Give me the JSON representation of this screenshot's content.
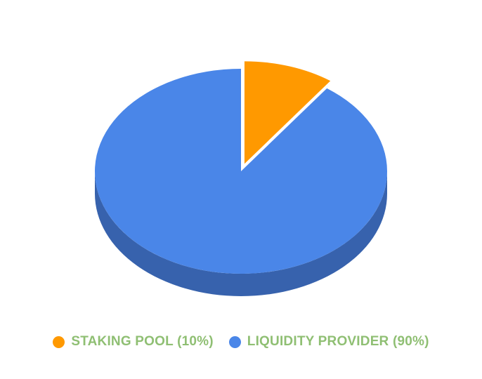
{
  "chart_data": {
    "type": "pie",
    "style": "3d",
    "slices": [
      {
        "label": "STAKING POOL",
        "value": 10,
        "color": "#ff9900",
        "side_color": "#c97800",
        "exploded": true
      },
      {
        "label": "LIQUIDITY PROVIDER",
        "value": 90,
        "color": "#4a86e8",
        "side_color": "#3762ad",
        "exploded": false
      }
    ],
    "legend": {
      "position": "bottom",
      "label_color": "#8fbf73",
      "items": [
        {
          "label": "STAKING POOL (10%)",
          "color": "#ff9900"
        },
        {
          "label": "LIQUIDITY PROVIDER (90%)",
          "color": "#4a86e8"
        }
      ]
    }
  }
}
